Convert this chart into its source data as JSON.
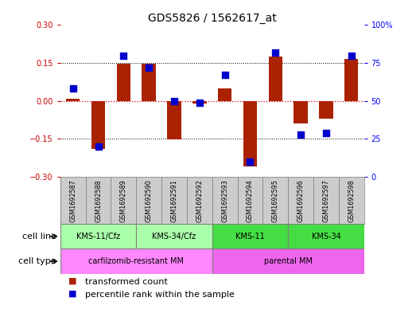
{
  "title": "GDS5826 / 1562617_at",
  "samples": [
    "GSM1692587",
    "GSM1692588",
    "GSM1692589",
    "GSM1692590",
    "GSM1692591",
    "GSM1692592",
    "GSM1692593",
    "GSM1692594",
    "GSM1692595",
    "GSM1692596",
    "GSM1692597",
    "GSM1692598"
  ],
  "transformed_count": [
    0.01,
    -0.19,
    0.148,
    0.148,
    -0.152,
    -0.01,
    0.05,
    -0.26,
    0.175,
    -0.09,
    -0.07,
    0.165
  ],
  "percentile_rank": [
    58,
    20,
    80,
    72,
    50,
    49,
    67,
    10,
    82,
    28,
    29,
    80
  ],
  "cell_lines": [
    {
      "label": "KMS-11/Cfz",
      "start": 0,
      "end": 3,
      "color": "#AAFFAA"
    },
    {
      "label": "KMS-34/Cfz",
      "start": 3,
      "end": 6,
      "color": "#AAFFAA"
    },
    {
      "label": "KMS-11",
      "start": 6,
      "end": 9,
      "color": "#44DD44"
    },
    {
      "label": "KMS-34",
      "start": 9,
      "end": 12,
      "color": "#44DD44"
    }
  ],
  "cell_types": [
    {
      "label": "carfilzomib-resistant MM",
      "start": 0,
      "end": 6,
      "color": "#FF88FF"
    },
    {
      "label": "parental MM",
      "start": 6,
      "end": 12,
      "color": "#EE66EE"
    }
  ],
  "ylim": [
    -0.3,
    0.3
  ],
  "yticks_left": [
    -0.3,
    -0.15,
    0,
    0.15,
    0.3
  ],
  "yticks_right": [
    0,
    25,
    50,
    75,
    100
  ],
  "ytick_right_labels": [
    "0",
    "25",
    "50",
    "75",
    "100%"
  ],
  "bar_color": "#AA2200",
  "dot_color": "#0000CC",
  "bar_width": 0.55,
  "dot_size": 30,
  "hline_color": "#CC0000",
  "dotted_color": "black",
  "sample_bg": "#CCCCCC",
  "title_fontsize": 10,
  "tick_fontsize": 7,
  "label_fontsize": 8,
  "legend_fontsize": 8
}
